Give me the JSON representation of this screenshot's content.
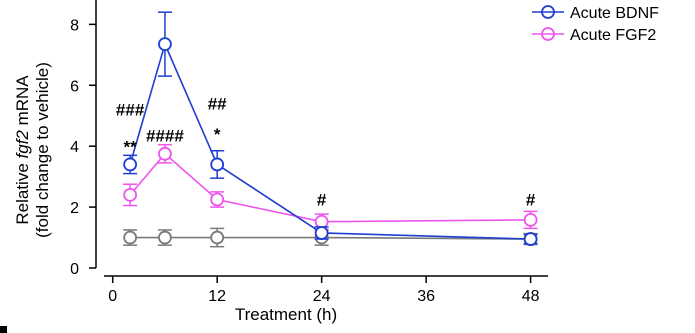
{
  "chart_data": {
    "type": "line",
    "xlabel": "Treatment (h)",
    "ylabel_line1_prefix": "Relative ",
    "ylabel_line1_italic": "fgf2",
    "ylabel_line1_suffix": " mRNA",
    "ylabel_line2": "(fold change to vehicle)",
    "xlim": [
      -1,
      50
    ],
    "ylim": [
      0,
      8.8
    ],
    "x_ticks": [
      0,
      12,
      24,
      36,
      48
    ],
    "y_ticks": [
      0,
      2,
      4,
      6,
      8
    ],
    "legend_position": "top-right",
    "series": [
      {
        "name": "Acute BDNF",
        "color": "#1f3fd1",
        "x": [
          2,
          6,
          12,
          24,
          48
        ],
        "y": [
          3.4,
          7.35,
          3.4,
          1.15,
          0.95
        ],
        "err": [
          0.3,
          1.05,
          0.45,
          0.2,
          0.15
        ]
      },
      {
        "name": "Acute FGF2",
        "color": "#ee55ee",
        "x": [
          2,
          6,
          12,
          24,
          48
        ],
        "y": [
          2.4,
          3.75,
          2.25,
          1.52,
          1.58
        ],
        "err": [
          0.35,
          0.3,
          0.25,
          0.25,
          0.28
        ]
      },
      {
        "name": "",
        "color": "#7a7a7a",
        "x": [
          2,
          6,
          12,
          24,
          48
        ],
        "y": [
          1.0,
          1.0,
          1.0,
          1.0,
          0.95
        ],
        "err": [
          0.25,
          0.25,
          0.3,
          0.25,
          0.18
        ]
      }
    ],
    "annotations": [
      {
        "text": "###",
        "x": 2,
        "y": 5.0
      },
      {
        "text": "**",
        "x": 2,
        "y": 3.8
      },
      {
        "text": "####",
        "x": 6,
        "y": 4.15
      },
      {
        "text": "##",
        "x": 12,
        "y": 5.2
      },
      {
        "text": "*",
        "x": 12,
        "y": 4.2
      },
      {
        "text": "#",
        "x": 24,
        "y": 2.05
      },
      {
        "text": "#",
        "x": 48,
        "y": 2.05
      }
    ]
  }
}
